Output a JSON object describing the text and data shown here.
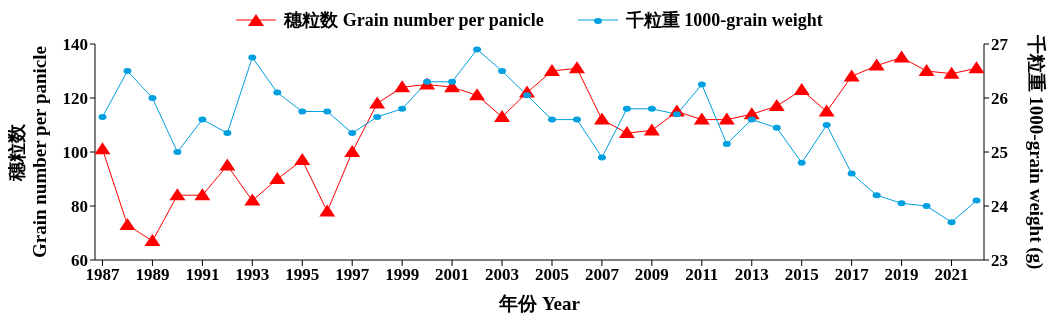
{
  "chart_data": {
    "type": "line",
    "xlabel": "年份 Year",
    "ylabel": "穗粒数\nGrain number per panicle",
    "y2label": "千粒重 1000-grain weight (g)",
    "x": [
      1987,
      1988,
      1989,
      1990,
      1991,
      1992,
      1993,
      1994,
      1995,
      1996,
      1997,
      1998,
      1999,
      2000,
      2001,
      2002,
      2003,
      2004,
      2005,
      2006,
      2007,
      2008,
      2009,
      2010,
      2011,
      2012,
      2013,
      2014,
      2015,
      2016,
      2017,
      2018,
      2019,
      2020,
      2021,
      2022
    ],
    "series": [
      {
        "name": "穗粒数 Grain number per panicle",
        "color": "#ff0000",
        "marker": "triangle",
        "values": [
          101,
          73,
          67,
          84,
          84,
          95,
          82,
          90,
          97,
          78,
          100,
          118,
          124,
          125,
          124,
          121,
          113,
          122,
          130,
          131,
          112,
          107,
          108,
          115,
          112,
          112,
          114,
          117,
          123,
          115,
          128,
          132,
          135,
          130,
          129,
          131
        ]
      },
      {
        "name": "千粒重 1000-grain weight",
        "color": "#00a0e0",
        "marker": "circle",
        "axis": "y2",
        "values": [
          25.65,
          26.5,
          26.0,
          25.0,
          25.6,
          25.35,
          26.75,
          26.1,
          25.75,
          25.75,
          25.35,
          25.65,
          25.8,
          26.3,
          26.3,
          26.9,
          26.5,
          26.05,
          25.6,
          25.6,
          24.9,
          25.8,
          25.8,
          25.7,
          26.25,
          25.15,
          25.6,
          25.45,
          24.8,
          25.5,
          24.6,
          24.2,
          24.05,
          24.0,
          23.7,
          24.1
        ]
      }
    ],
    "xlim": [
      1986.7,
      2022.3
    ],
    "xticks": [
      1987,
      1989,
      1991,
      1993,
      1995,
      1997,
      1999,
      2001,
      2003,
      2005,
      2007,
      2009,
      2011,
      2013,
      2015,
      2017,
      2019,
      2021
    ],
    "ylim": [
      60,
      140
    ],
    "yticks": [
      60,
      80,
      100,
      120,
      140
    ],
    "y2lim": [
      23,
      27
    ],
    "y2ticks": [
      23,
      24,
      25,
      26,
      27
    ],
    "grid": false,
    "legend": "top",
    "line_style": "solid"
  }
}
